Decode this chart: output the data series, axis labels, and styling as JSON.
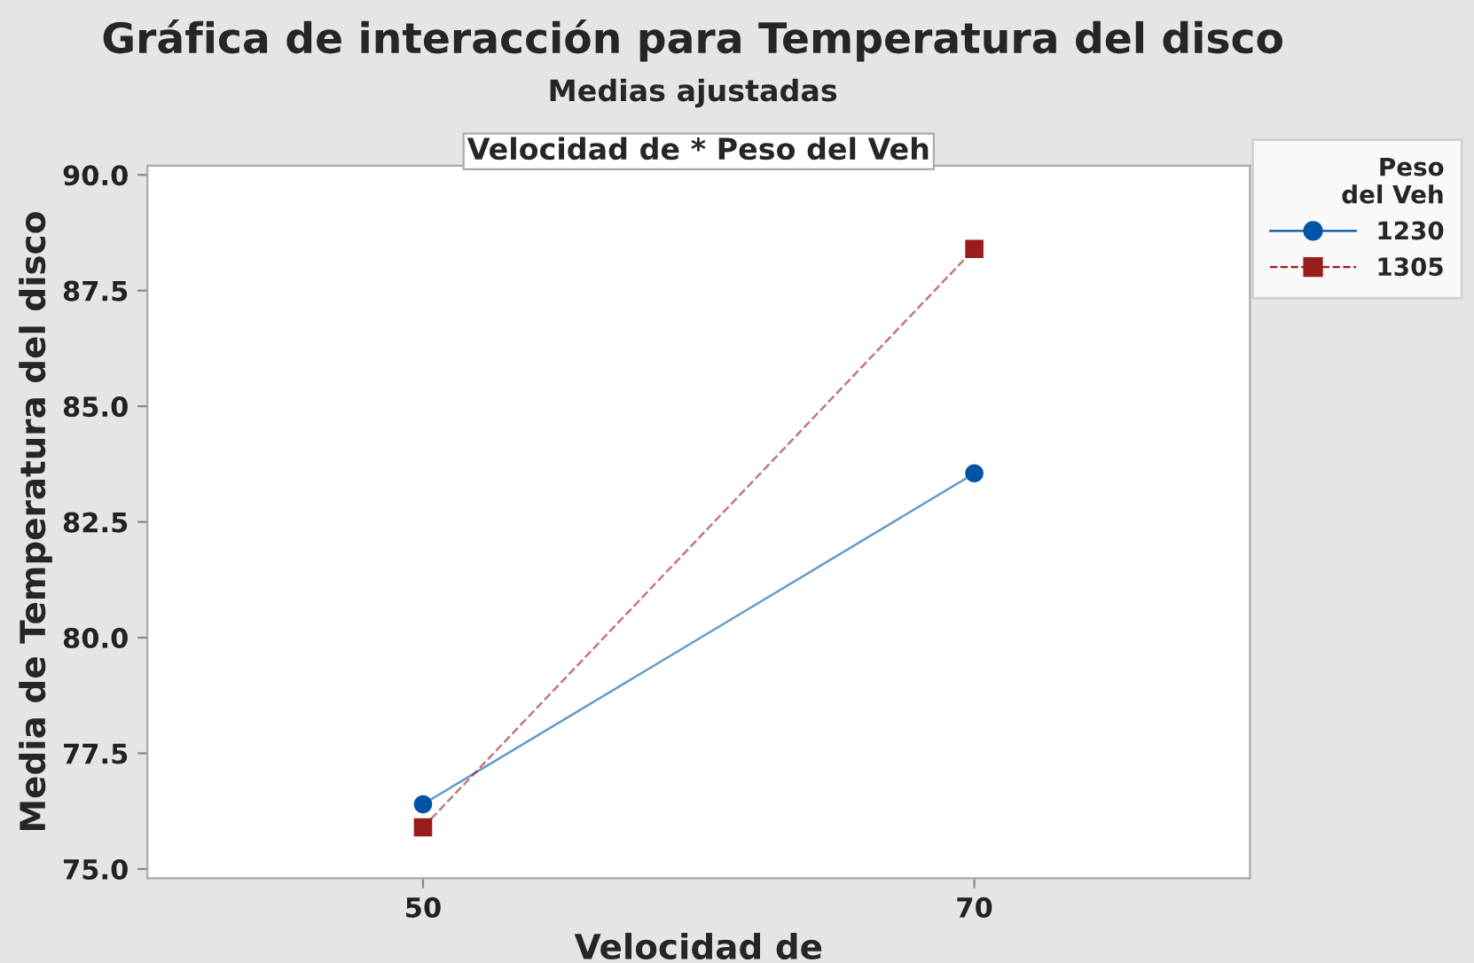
{
  "chart_data": {
    "type": "line",
    "title": "Gráfica de interacción para Temperatura del disco",
    "subtitle": "Medias ajustadas",
    "annotations": [
      "Velocidad de * Peso del Veh"
    ],
    "xlabel": "Velocidad de",
    "ylabel": "Media de Temperatura del disco",
    "legend_title": "Peso\ndel Veh",
    "x": [
      50,
      70
    ],
    "series": [
      {
        "name": "1230",
        "color": "#0054a6",
        "values": [
          76.4,
          83.55
        ],
        "marker": "circle",
        "line_style": "solid"
      },
      {
        "name": "1305",
        "color": "#9b1c1c",
        "values": [
          75.9,
          88.4
        ],
        "marker": "square",
        "line_style": "dashed"
      }
    ],
    "xlim": [
      40,
      80
    ],
    "xticks": [
      50,
      70
    ],
    "ylim": [
      74.8,
      90.2
    ],
    "yticks": [
      {
        "value": 75,
        "label": "75.0"
      },
      {
        "value": 77.5,
        "label": "77.5"
      },
      {
        "value": 80,
        "label": "80.0"
      },
      {
        "value": 82.5,
        "label": "82.5"
      },
      {
        "value": 85,
        "label": "85.0"
      },
      {
        "value": 87.5,
        "label": "87.5"
      },
      {
        "value": 90,
        "label": "90.0"
      }
    ],
    "grid": false,
    "legend": "top right"
  }
}
